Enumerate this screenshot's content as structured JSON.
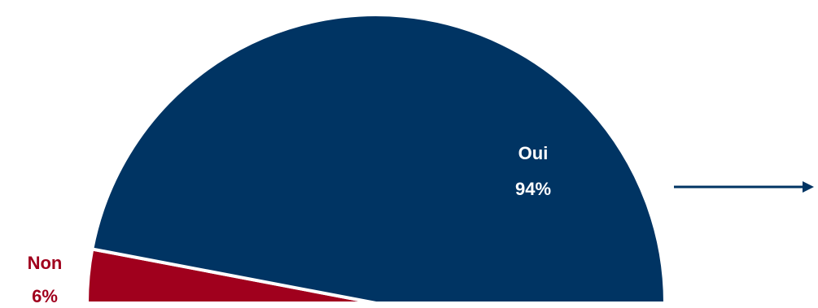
{
  "chart_data": {
    "type": "pie",
    "variant": "half-donut-semicircle",
    "title": "",
    "slices": [
      {
        "label": "Oui",
        "value": 94,
        "value_label": "94%",
        "color": "#003463",
        "label_color": "#ffffff",
        "label_placement": "inside"
      },
      {
        "label": "Non",
        "value": 6,
        "value_label": "6%",
        "color": "#A0001D",
        "label_color": "#A0001D",
        "label_placement": "outside-left"
      }
    ],
    "legend": "none",
    "annotations": [
      {
        "type": "arrow",
        "direction": "right",
        "color": "#003463"
      }
    ]
  }
}
